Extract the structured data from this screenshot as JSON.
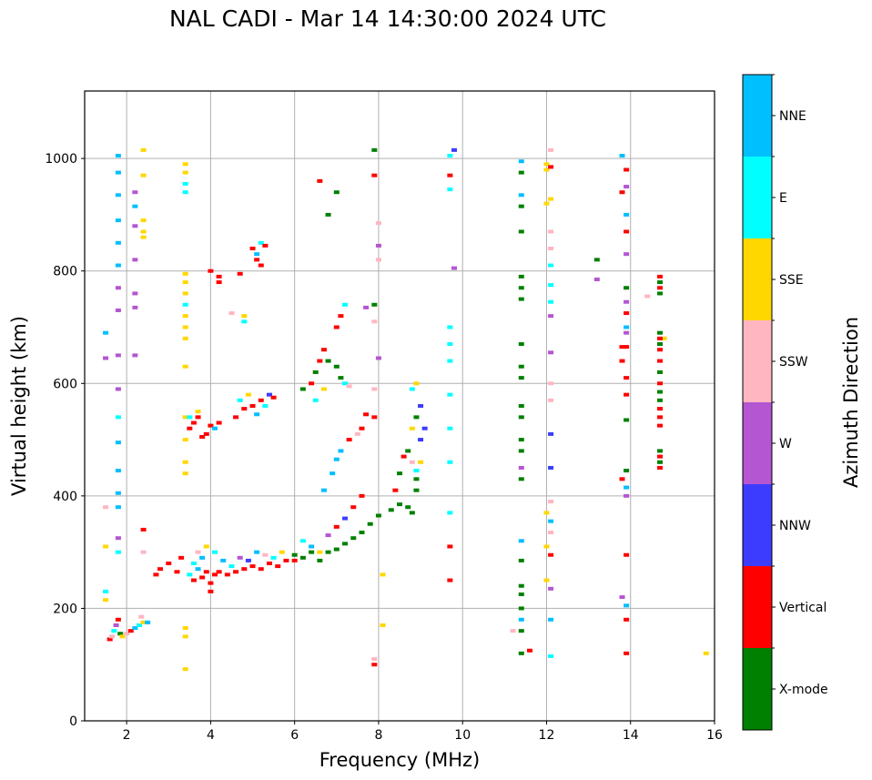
{
  "chart_data": {
    "type": "scatter",
    "title": "NAL CADI - Mar 14 14:30:00 2024 UTC",
    "xlabel": "Frequency (MHz)",
    "ylabel": "Virtual height (km)",
    "xlim": [
      1,
      16
    ],
    "ylim": [
      0,
      1120
    ],
    "xticks": [
      2,
      4,
      6,
      8,
      10,
      12,
      14,
      16
    ],
    "yticks": [
      0,
      200,
      400,
      600,
      800,
      1000
    ],
    "grid": true,
    "colorbar": {
      "label": "Azimuth Direction",
      "placement": "right",
      "categories": [
        {
          "name": "X-mode",
          "color": "#008000"
        },
        {
          "name": "Vertical",
          "color": "#ff0000"
        },
        {
          "name": "NNW",
          "color": "#3c3cff"
        },
        {
          "name": "W",
          "color": "#b455d2"
        },
        {
          "name": "SSW",
          "color": "#ffb6c1"
        },
        {
          "name": "SSE",
          "color": "#ffd700"
        },
        {
          "name": "E",
          "color": "#00ffff"
        },
        {
          "name": "NNE",
          "color": "#00bfff"
        }
      ]
    },
    "point_format": [
      "frequency_MHz",
      "height_km",
      "direction_index"
    ],
    "points": [
      [
        1.6,
        145,
        1
      ],
      [
        1.65,
        150,
        4
      ],
      [
        1.7,
        160,
        6
      ],
      [
        1.75,
        170,
        3
      ],
      [
        1.8,
        180,
        1
      ],
      [
        1.85,
        155,
        0
      ],
      [
        1.9,
        150,
        5
      ],
      [
        2.0,
        155,
        4
      ],
      [
        2.1,
        160,
        1
      ],
      [
        2.2,
        165,
        7
      ],
      [
        2.3,
        170,
        6
      ],
      [
        2.4,
        175,
        5
      ],
      [
        2.5,
        175,
        7
      ],
      [
        2.35,
        185,
        4
      ],
      [
        1.5,
        230,
        6
      ],
      [
        1.5,
        215,
        5
      ],
      [
        1.5,
        310,
        5
      ],
      [
        1.5,
        380,
        4
      ],
      [
        1.5,
        645,
        3
      ],
      [
        1.5,
        690,
        7
      ],
      [
        1.8,
        1005,
        7
      ],
      [
        1.8,
        975,
        7
      ],
      [
        1.8,
        935,
        7
      ],
      [
        1.8,
        890,
        7
      ],
      [
        1.8,
        850,
        7
      ],
      [
        1.8,
        810,
        7
      ],
      [
        1.8,
        770,
        3
      ],
      [
        1.8,
        730,
        3
      ],
      [
        1.8,
        650,
        3
      ],
      [
        1.8,
        590,
        3
      ],
      [
        1.8,
        540,
        6
      ],
      [
        1.8,
        495,
        7
      ],
      [
        1.8,
        445,
        7
      ],
      [
        1.8,
        405,
        7
      ],
      [
        1.8,
        380,
        7
      ],
      [
        1.8,
        325,
        3
      ],
      [
        1.8,
        300,
        6
      ],
      [
        2.2,
        940,
        3
      ],
      [
        2.2,
        915,
        7
      ],
      [
        2.2,
        880,
        3
      ],
      [
        2.2,
        820,
        3
      ],
      [
        2.2,
        760,
        3
      ],
      [
        2.2,
        735,
        3
      ],
      [
        2.2,
        650,
        3
      ],
      [
        2.4,
        1015,
        5
      ],
      [
        2.4,
        970,
        5
      ],
      [
        2.4,
        890,
        5
      ],
      [
        2.4,
        870,
        5
      ],
      [
        2.4,
        860,
        5
      ],
      [
        2.4,
        340,
        1
      ],
      [
        2.4,
        300,
        4
      ],
      [
        3.4,
        990,
        5
      ],
      [
        3.4,
        975,
        5
      ],
      [
        3.4,
        955,
        6
      ],
      [
        3.4,
        940,
        6
      ],
      [
        3.4,
        795,
        5
      ],
      [
        3.4,
        780,
        5
      ],
      [
        3.4,
        760,
        5
      ],
      [
        3.4,
        740,
        6
      ],
      [
        3.4,
        720,
        5
      ],
      [
        3.4,
        700,
        5
      ],
      [
        3.4,
        680,
        5
      ],
      [
        3.4,
        630,
        5
      ],
      [
        3.4,
        540,
        5
      ],
      [
        3.4,
        500,
        5
      ],
      [
        3.4,
        460,
        5
      ],
      [
        3.4,
        440,
        5
      ],
      [
        3.4,
        165,
        5
      ],
      [
        3.4,
        150,
        5
      ],
      [
        3.4,
        92,
        5
      ],
      [
        2.7,
        260,
        1
      ],
      [
        2.8,
        270,
        1
      ],
      [
        3.0,
        280,
        1
      ],
      [
        3.2,
        265,
        1
      ],
      [
        3.3,
        290,
        1
      ],
      [
        3.5,
        260,
        6
      ],
      [
        3.6,
        250,
        1
      ],
      [
        3.7,
        270,
        7
      ],
      [
        3.8,
        255,
        1
      ],
      [
        3.9,
        265,
        1
      ],
      [
        4.0,
        245,
        1
      ],
      [
        4.0,
        230,
        1
      ],
      [
        4.1,
        260,
        1
      ],
      [
        4.2,
        265,
        1
      ],
      [
        4.4,
        260,
        1
      ],
      [
        4.6,
        265,
        1
      ],
      [
        4.8,
        270,
        1
      ],
      [
        5.0,
        275,
        1
      ],
      [
        5.2,
        270,
        1
      ],
      [
        5.4,
        280,
        1
      ],
      [
        5.6,
        275,
        1
      ],
      [
        5.8,
        285,
        1
      ],
      [
        6.0,
        285,
        1
      ],
      [
        3.6,
        280,
        6
      ],
      [
        3.7,
        300,
        4
      ],
      [
        3.8,
        290,
        7
      ],
      [
        3.9,
        310,
        5
      ],
      [
        4.1,
        300,
        6
      ],
      [
        4.3,
        285,
        7
      ],
      [
        4.5,
        275,
        6
      ],
      [
        4.7,
        290,
        3
      ],
      [
        4.9,
        285,
        2
      ],
      [
        5.1,
        300,
        7
      ],
      [
        5.3,
        295,
        4
      ],
      [
        5.5,
        290,
        6
      ],
      [
        5.7,
        300,
        5
      ],
      [
        3.5,
        520,
        1
      ],
      [
        3.6,
        530,
        1
      ],
      [
        3.7,
        540,
        1
      ],
      [
        3.8,
        505,
        1
      ],
      [
        3.9,
        510,
        1
      ],
      [
        4.0,
        525,
        1
      ],
      [
        4.1,
        520,
        7
      ],
      [
        4.2,
        530,
        1
      ],
      [
        3.5,
        540,
        6
      ],
      [
        3.7,
        550,
        5
      ],
      [
        4.6,
        540,
        1
      ],
      [
        4.8,
        555,
        1
      ],
      [
        5.0,
        560,
        1
      ],
      [
        5.1,
        545,
        7
      ],
      [
        5.2,
        570,
        1
      ],
      [
        5.3,
        560,
        6
      ],
      [
        5.4,
        580,
        2
      ],
      [
        5.5,
        575,
        1
      ],
      [
        4.7,
        570,
        6
      ],
      [
        4.9,
        580,
        5
      ],
      [
        4.0,
        800,
        1
      ],
      [
        4.2,
        790,
        1
      ],
      [
        4.2,
        780,
        1
      ],
      [
        4.7,
        795,
        1
      ],
      [
        5.0,
        840,
        1
      ],
      [
        5.1,
        830,
        7
      ],
      [
        5.2,
        850,
        6
      ],
      [
        5.3,
        845,
        1
      ],
      [
        5.1,
        820,
        1
      ],
      [
        5.2,
        810,
        1
      ],
      [
        4.8,
        710,
        6
      ],
      [
        4.8,
        720,
        5
      ],
      [
        4.5,
        725,
        4
      ],
      [
        6.0,
        295,
        0
      ],
      [
        6.2,
        290,
        0
      ],
      [
        6.4,
        300,
        0
      ],
      [
        6.6,
        285,
        0
      ],
      [
        6.8,
        300,
        0
      ],
      [
        7.0,
        305,
        0
      ],
      [
        7.2,
        315,
        0
      ],
      [
        7.4,
        325,
        0
      ],
      [
        7.6,
        335,
        0
      ],
      [
        7.8,
        350,
        0
      ],
      [
        8.0,
        365,
        0
      ],
      [
        8.3,
        375,
        0
      ],
      [
        8.5,
        385,
        0
      ],
      [
        8.7,
        380,
        0
      ],
      [
        8.8,
        370,
        0
      ],
      [
        8.9,
        410,
        0
      ],
      [
        8.9,
        430,
        0
      ],
      [
        6.2,
        320,
        6
      ],
      [
        6.4,
        310,
        7
      ],
      [
        6.6,
        300,
        5
      ],
      [
        6.8,
        330,
        3
      ],
      [
        7.0,
        345,
        1
      ],
      [
        7.2,
        360,
        2
      ],
      [
        7.4,
        380,
        1
      ],
      [
        7.6,
        400,
        1
      ],
      [
        6.7,
        410,
        7
      ],
      [
        6.9,
        440,
        7
      ],
      [
        7.0,
        465,
        7
      ],
      [
        7.1,
        480,
        7
      ],
      [
        7.3,
        500,
        1
      ],
      [
        7.6,
        520,
        1
      ],
      [
        7.5,
        510,
        4
      ],
      [
        7.7,
        545,
        1
      ],
      [
        6.2,
        590,
        0
      ],
      [
        6.4,
        600,
        1
      ],
      [
        6.5,
        620,
        0
      ],
      [
        6.6,
        640,
        1
      ],
      [
        6.7,
        660,
        1
      ],
      [
        6.8,
        640,
        0
      ],
      [
        7.0,
        630,
        0
      ],
      [
        7.1,
        610,
        0
      ],
      [
        7.2,
        600,
        6
      ],
      [
        7.3,
        595,
        4
      ],
      [
        7.0,
        700,
        1
      ],
      [
        7.1,
        720,
        1
      ],
      [
        7.2,
        740,
        6
      ],
      [
        6.5,
        570,
        6
      ],
      [
        6.7,
        590,
        5
      ],
      [
        8.4,
        410,
        1
      ],
      [
        8.5,
        440,
        0
      ],
      [
        8.6,
        470,
        1
      ],
      [
        8.7,
        480,
        0
      ],
      [
        8.8,
        520,
        5
      ],
      [
        8.9,
        540,
        0
      ],
      [
        9.0,
        560,
        2
      ],
      [
        9.0,
        500,
        2
      ],
      [
        9.1,
        520,
        2
      ],
      [
        9.0,
        460,
        5
      ],
      [
        8.9,
        445,
        6
      ],
      [
        8.8,
        460,
        4
      ],
      [
        8.9,
        600,
        5
      ],
      [
        8.8,
        590,
        6
      ],
      [
        6.8,
        900,
        0
      ],
      [
        7.0,
        940,
        0
      ],
      [
        6.6,
        960,
        1
      ],
      [
        7.9,
        1015,
        0
      ],
      [
        7.9,
        970,
        1
      ],
      [
        8.0,
        885,
        4
      ],
      [
        8.0,
        845,
        3
      ],
      [
        8.0,
        820,
        4
      ],
      [
        7.9,
        740,
        0
      ],
      [
        7.7,
        735,
        3
      ],
      [
        7.9,
        710,
        4
      ],
      [
        8.0,
        645,
        3
      ],
      [
        7.9,
        590,
        4
      ],
      [
        7.9,
        540,
        1
      ],
      [
        8.1,
        260,
        5
      ],
      [
        8.1,
        170,
        5
      ],
      [
        7.9,
        110,
        4
      ],
      [
        7.9,
        100,
        1
      ],
      [
        9.8,
        1015,
        2
      ],
      [
        9.7,
        1005,
        6
      ],
      [
        9.7,
        970,
        1
      ],
      [
        9.7,
        945,
        6
      ],
      [
        9.8,
        805,
        3
      ],
      [
        9.7,
        700,
        6
      ],
      [
        9.7,
        670,
        6
      ],
      [
        9.7,
        640,
        6
      ],
      [
        9.7,
        580,
        6
      ],
      [
        9.7,
        520,
        6
      ],
      [
        9.7,
        460,
        6
      ],
      [
        9.7,
        370,
        6
      ],
      [
        9.7,
        310,
        1
      ],
      [
        9.7,
        250,
        1
      ],
      [
        11.4,
        995,
        7
      ],
      [
        11.4,
        975,
        0
      ],
      [
        11.4,
        935,
        7
      ],
      [
        11.4,
        915,
        0
      ],
      [
        11.4,
        870,
        0
      ],
      [
        11.4,
        790,
        0
      ],
      [
        11.4,
        770,
        0
      ],
      [
        11.4,
        750,
        0
      ],
      [
        11.4,
        670,
        0
      ],
      [
        11.4,
        630,
        0
      ],
      [
        11.4,
        610,
        0
      ],
      [
        11.4,
        560,
        0
      ],
      [
        11.4,
        540,
        0
      ],
      [
        11.4,
        500,
        0
      ],
      [
        11.4,
        480,
        0
      ],
      [
        11.4,
        450,
        3
      ],
      [
        11.4,
        430,
        0
      ],
      [
        11.4,
        320,
        7
      ],
      [
        11.4,
        285,
        0
      ],
      [
        11.4,
        240,
        0
      ],
      [
        11.4,
        225,
        0
      ],
      [
        11.4,
        200,
        0
      ],
      [
        11.4,
        180,
        7
      ],
      [
        11.4,
        160,
        0
      ],
      [
        11.4,
        120,
        0
      ],
      [
        11.6,
        125,
        1
      ],
      [
        11.2,
        160,
        4
      ],
      [
        12.0,
        990,
        5
      ],
      [
        12.0,
        980,
        5
      ],
      [
        12.1,
        985,
        1
      ],
      [
        12.0,
        920,
        5
      ],
      [
        12.1,
        928,
        5
      ],
      [
        12.1,
        1015,
        4
      ],
      [
        12.1,
        870,
        4
      ],
      [
        12.1,
        840,
        4
      ],
      [
        12.1,
        810,
        6
      ],
      [
        12.1,
        775,
        6
      ],
      [
        12.1,
        745,
        6
      ],
      [
        12.1,
        720,
        3
      ],
      [
        12.1,
        655,
        3
      ],
      [
        12.1,
        600,
        4
      ],
      [
        12.1,
        570,
        4
      ],
      [
        12.1,
        510,
        2
      ],
      [
        12.1,
        450,
        2
      ],
      [
        12.1,
        390,
        4
      ],
      [
        12.0,
        370,
        5
      ],
      [
        12.1,
        355,
        7
      ],
      [
        12.1,
        335,
        4
      ],
      [
        12.0,
        310,
        5
      ],
      [
        12.1,
        295,
        1
      ],
      [
        12.0,
        250,
        5
      ],
      [
        12.1,
        235,
        3
      ],
      [
        12.1,
        180,
        7
      ],
      [
        12.1,
        115,
        6
      ],
      [
        13.2,
        820,
        0
      ],
      [
        13.2,
        785,
        3
      ],
      [
        13.8,
        1005,
        7
      ],
      [
        13.9,
        980,
        1
      ],
      [
        13.9,
        950,
        3
      ],
      [
        13.8,
        940,
        1
      ],
      [
        13.9,
        900,
        7
      ],
      [
        13.9,
        870,
        1
      ],
      [
        13.9,
        830,
        3
      ],
      [
        13.9,
        770,
        0
      ],
      [
        13.9,
        745,
        3
      ],
      [
        13.9,
        725,
        1
      ],
      [
        13.9,
        700,
        7
      ],
      [
        13.9,
        690,
        3
      ],
      [
        13.8,
        665,
        1
      ],
      [
        13.9,
        665,
        1
      ],
      [
        13.8,
        640,
        1
      ],
      [
        13.9,
        610,
        1
      ],
      [
        13.9,
        580,
        1
      ],
      [
        13.9,
        535,
        0
      ],
      [
        13.8,
        430,
        1
      ],
      [
        13.9,
        445,
        0
      ],
      [
        13.9,
        415,
        7
      ],
      [
        13.9,
        400,
        3
      ],
      [
        13.9,
        295,
        1
      ],
      [
        13.8,
        220,
        3
      ],
      [
        13.9,
        205,
        7
      ],
      [
        13.9,
        180,
        1
      ],
      [
        13.9,
        120,
        1
      ],
      [
        14.4,
        755,
        4
      ],
      [
        14.8,
        680,
        5
      ],
      [
        15.8,
        120,
        5
      ],
      [
        14.7,
        790,
        1
      ],
      [
        14.7,
        780,
        0
      ],
      [
        14.7,
        770,
        1
      ],
      [
        14.7,
        760,
        0
      ],
      [
        14.7,
        690,
        0
      ],
      [
        14.7,
        680,
        1
      ],
      [
        14.7,
        670,
        0
      ],
      [
        14.7,
        660,
        1
      ],
      [
        14.7,
        640,
        1
      ],
      [
        14.7,
        620,
        0
      ],
      [
        14.7,
        600,
        1
      ],
      [
        14.7,
        585,
        0
      ],
      [
        14.7,
        570,
        0
      ],
      [
        14.7,
        555,
        1
      ],
      [
        14.7,
        540,
        1
      ],
      [
        14.7,
        525,
        1
      ],
      [
        14.7,
        480,
        0
      ],
      [
        14.7,
        470,
        1
      ],
      [
        14.7,
        460,
        0
      ],
      [
        14.7,
        450,
        1
      ]
    ]
  }
}
